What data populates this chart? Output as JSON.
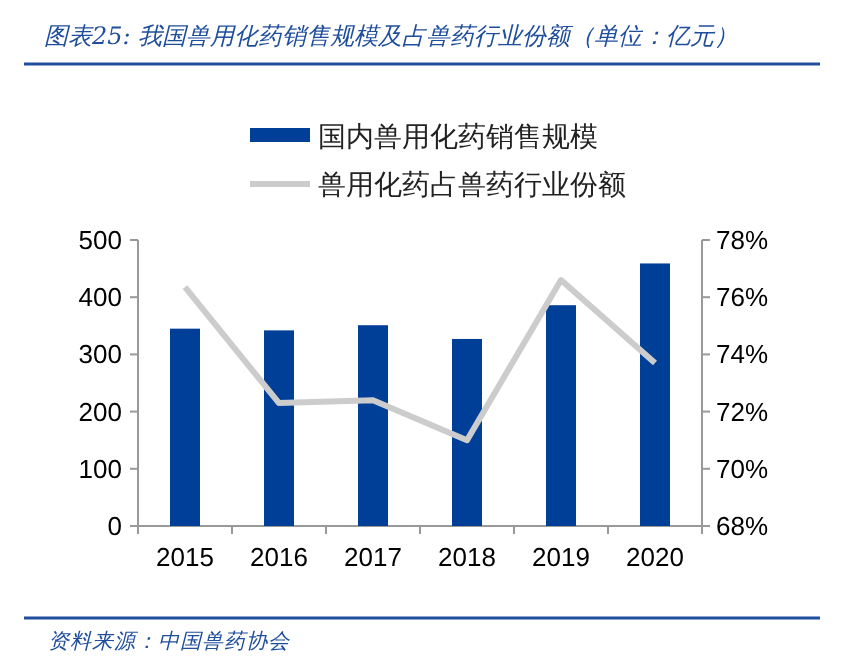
{
  "chart_data": {
    "type": "bar",
    "title": "图表25: 我国兽用化药销售规模及占兽药行业份额（单位：亿元）",
    "categories": [
      "2015",
      "2016",
      "2017",
      "2018",
      "2019",
      "2020"
    ],
    "series": [
      {
        "name": "国内兽用化药销售规模",
        "color": "#003f98",
        "values": [
          345,
          342,
          351,
          327,
          386,
          459
        ]
      },
      {
        "name": "兽用化药占兽药行业份额",
        "type": "line",
        "axis": "y2",
        "color": "#cccccc",
        "marker": "none",
        "values": [
          76.35,
          72.3,
          72.4,
          71.0,
          76.6,
          73.7
        ]
      }
    ],
    "ylim": [
      0,
      500
    ],
    "yticks": [
      0,
      100,
      200,
      300,
      400,
      500
    ],
    "y2lim": [
      68,
      78
    ],
    "y2ticks": [
      {
        "value": 68,
        "label": "68%"
      },
      {
        "value": 70,
        "label": "70%"
      },
      {
        "value": 72,
        "label": "72%"
      },
      {
        "value": 74,
        "label": "74%"
      },
      {
        "value": 76,
        "label": "76%"
      },
      {
        "value": 78,
        "label": "78%"
      }
    ],
    "legend": "top",
    "grid": false,
    "annotations": [
      "资料来源：中国兽药协会"
    ]
  }
}
